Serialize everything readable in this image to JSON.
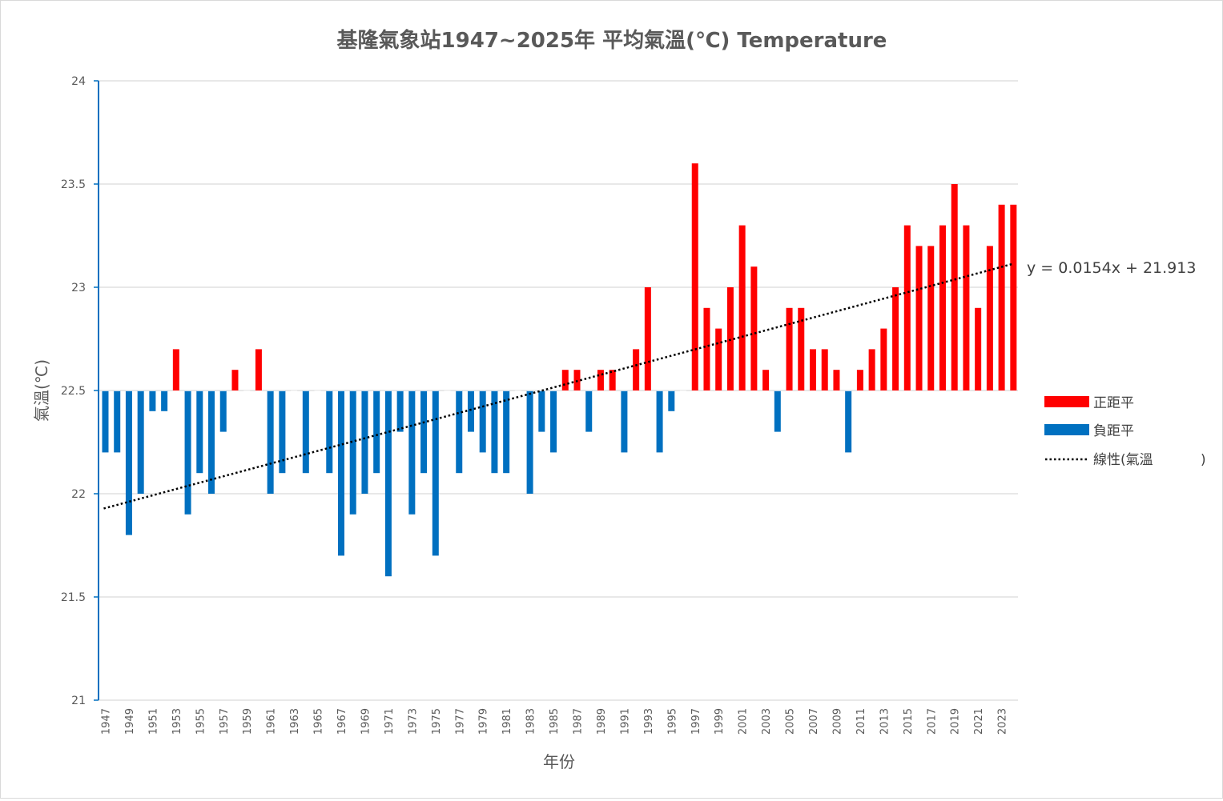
{
  "chart_data": {
    "type": "bar",
    "title": "基隆氣象站1947~2025年 平均氣溫(℃) Temperature",
    "xlabel": "年份",
    "ylabel": "氣溫(℃)",
    "ylim": [
      21,
      24
    ],
    "yticks": [
      "21",
      "21.5",
      "22",
      "22.5",
      "23",
      "23.5",
      "24"
    ],
    "baseline": 22.5,
    "grid": true,
    "legend_position": "right",
    "x_tick_labels": [
      "1947",
      "1949",
      "1951",
      "1953",
      "1955",
      "1957",
      "1959",
      "1961",
      "1963",
      "1965",
      "1967",
      "1969",
      "1971",
      "1973",
      "1975",
      "1977",
      "1979",
      "1981",
      "1983",
      "1985",
      "1987",
      "1989",
      "1991",
      "1993",
      "1995",
      "1997",
      "1999",
      "2001",
      "2003",
      "2005",
      "2007",
      "2009",
      "2011",
      "2013",
      "2015",
      "2017",
      "2019",
      "2021",
      "2023"
    ],
    "categories": [
      1947,
      1948,
      1949,
      1950,
      1951,
      1952,
      1953,
      1954,
      1955,
      1956,
      1957,
      1958,
      1959,
      1960,
      1961,
      1962,
      1963,
      1964,
      1965,
      1966,
      1967,
      1968,
      1969,
      1970,
      1971,
      1972,
      1973,
      1974,
      1975,
      1976,
      1977,
      1978,
      1979,
      1980,
      1981,
      1982,
      1983,
      1984,
      1985,
      1986,
      1987,
      1988,
      1989,
      1990,
      1991,
      1992,
      1993,
      1994,
      1995,
      1996,
      1997,
      1998,
      1999,
      2000,
      2001,
      2002,
      2003,
      2004,
      2005,
      2006,
      2007,
      2008,
      2009,
      2010,
      2011,
      2012,
      2013,
      2014,
      2015,
      2016,
      2017,
      2018,
      2019,
      2020,
      2021,
      2022,
      2023,
      2024
    ],
    "values": [
      22.2,
      22.2,
      21.8,
      22.0,
      22.4,
      22.4,
      22.7,
      21.9,
      22.1,
      22.0,
      22.3,
      22.6,
      null,
      22.7,
      22.0,
      22.1,
      null,
      22.1,
      null,
      22.1,
      21.7,
      21.9,
      22.0,
      22.1,
      21.6,
      22.3,
      21.9,
      22.1,
      21.7,
      null,
      22.1,
      22.3,
      22.2,
      22.1,
      22.1,
      null,
      22.0,
      22.3,
      22.2,
      22.6,
      22.6,
      22.3,
      22.6,
      22.6,
      22.2,
      22.7,
      23.0,
      22.2,
      22.4,
      null,
      23.6,
      22.9,
      22.8,
      23.0,
      23.3,
      23.1,
      22.6,
      22.3,
      22.9,
      22.9,
      22.7,
      22.7,
      22.6,
      22.2,
      22.6,
      22.7,
      22.8,
      23.0,
      23.3,
      23.2,
      23.2,
      23.3,
      23.5,
      23.3,
      22.9,
      23.2,
      23.4,
      23.4
    ],
    "series": [
      {
        "name": "正距平",
        "color": "#ff0000",
        "rule": "value above baseline"
      },
      {
        "name": "負距平",
        "color": "#0070c0",
        "rule": "value below baseline"
      },
      {
        "name": "線性(氣溫",
        "suffix": ")",
        "color": "#000000",
        "style": "dotted",
        "type": "trendline",
        "slope": 0.0154,
        "intercept": 21.913,
        "equation": "y = 0.0154x + 21.913"
      }
    ]
  }
}
